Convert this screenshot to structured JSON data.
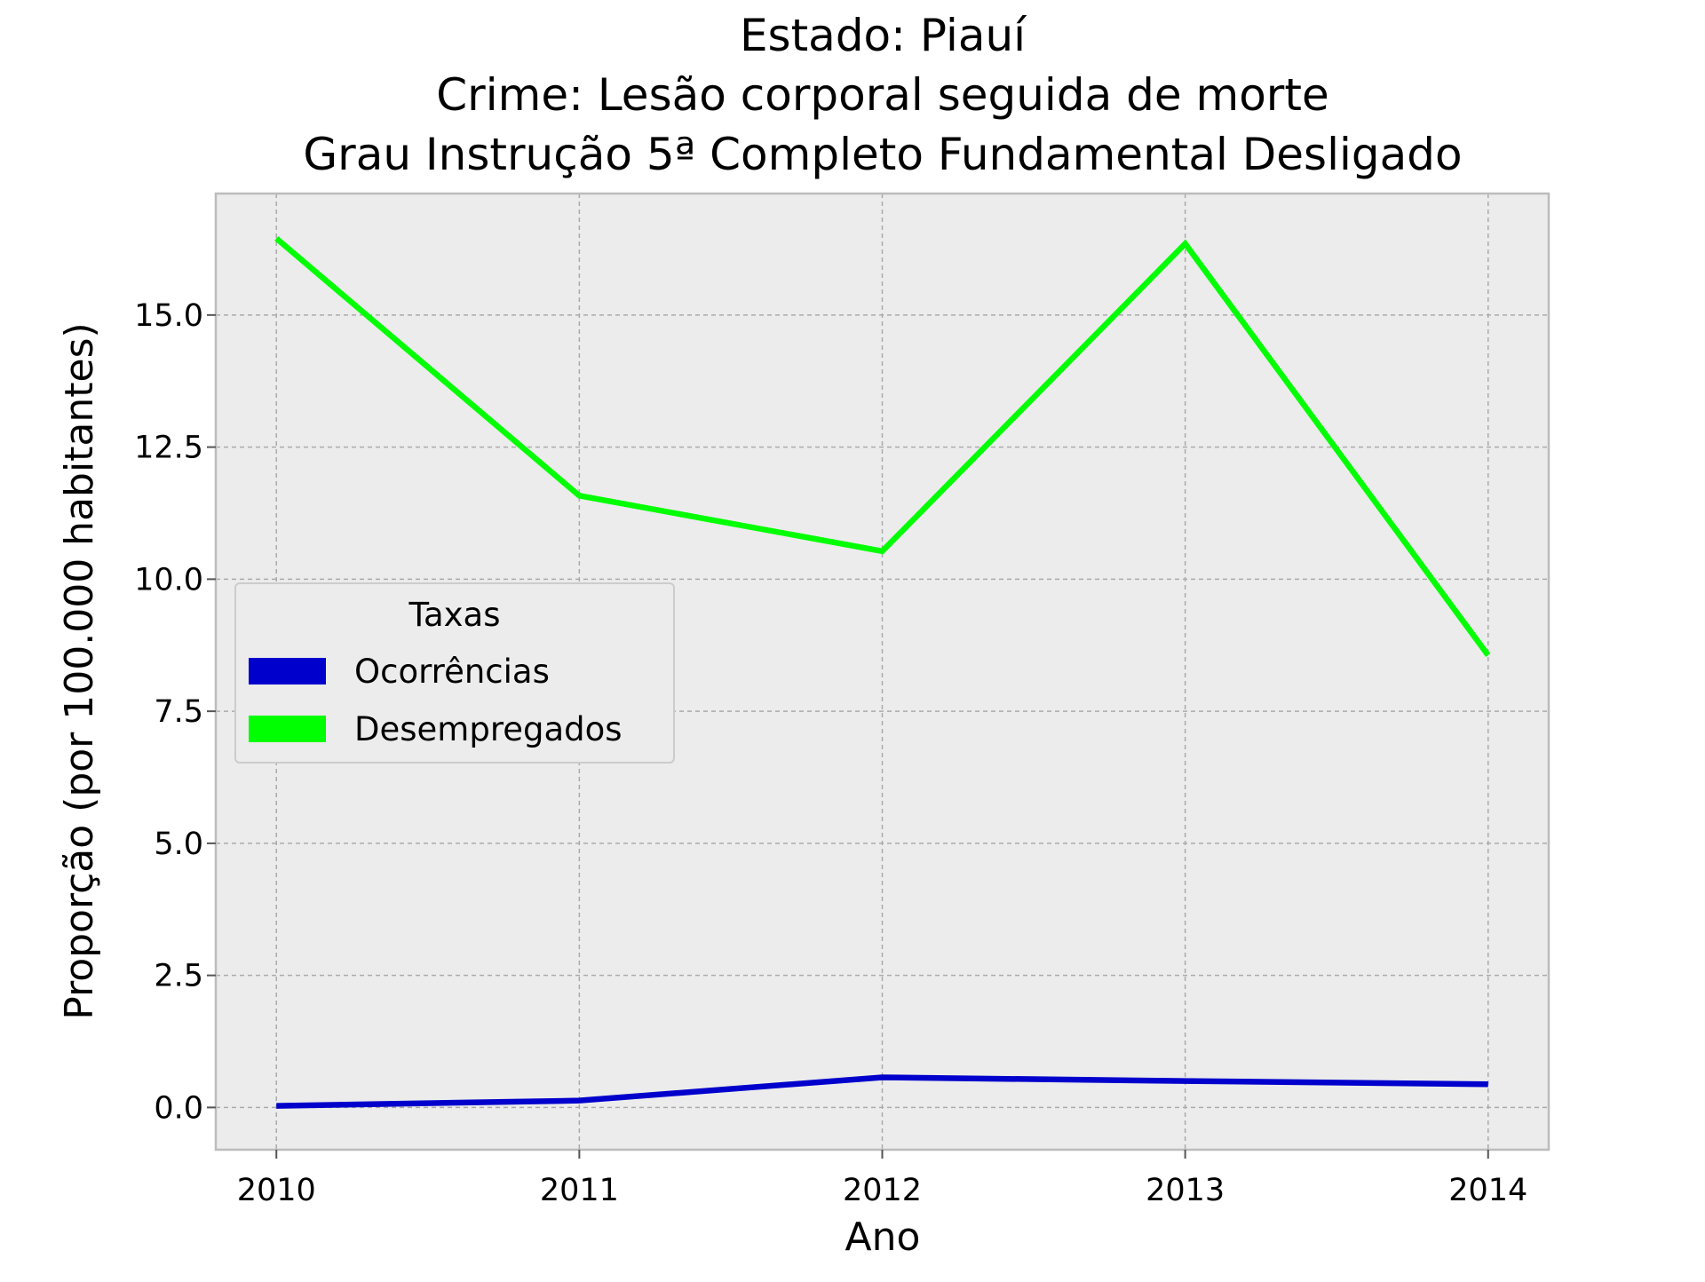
{
  "chart_data": {
    "type": "line",
    "title_lines": [
      "Estado: Piauí",
      "Crime: Lesão corporal seguida de morte",
      "Grau Instrução  5ª Completo Fundamental   Desligado"
    ],
    "xlabel": "Ano",
    "ylabel": "Proporção (por 100.000 habitantes)",
    "x": [
      2010,
      2011,
      2012,
      2013,
      2014
    ],
    "x_tick_labels": [
      "2010",
      "2011",
      "2012",
      "2013",
      "2014"
    ],
    "y_ticks": [
      0.0,
      2.5,
      5.0,
      7.5,
      10.0,
      12.5,
      15.0
    ],
    "y_tick_labels": [
      "0.0",
      "2.5",
      "5.0",
      "7.5",
      "10.0",
      "12.5",
      "15.0"
    ],
    "xlim": [
      2009.8,
      2014.2
    ],
    "ylim": [
      -0.8,
      17.3
    ],
    "grid": true,
    "legend": {
      "title": "Taxas",
      "placement": "center-left"
    },
    "series": [
      {
        "name": "Ocorrências",
        "color": "#0000cc",
        "values": [
          0.03,
          0.13,
          0.57,
          0.5,
          0.44
        ]
      },
      {
        "name": "Desempregados",
        "color": "#00ff00",
        "values": [
          16.45,
          11.58,
          10.53,
          16.35,
          8.56
        ]
      }
    ],
    "colors": {
      "plot_background": "#ececec",
      "grid": "#aaaaaa",
      "frame": "#bcbcbc"
    }
  }
}
